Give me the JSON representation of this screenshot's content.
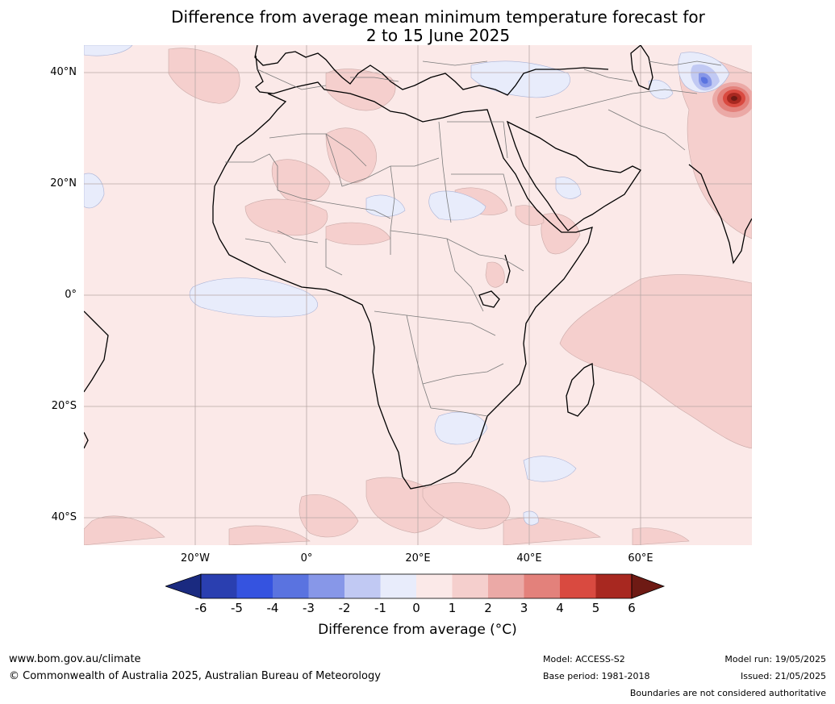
{
  "title_line1": "Difference from average mean minimum temperature forecast for",
  "title_line2": "2 to 15 June 2025",
  "lat_labels": [
    "40°N",
    "20°N",
    "0°",
    "20°S",
    "40°S"
  ],
  "lon_labels": [
    "20°W",
    "0°",
    "20°E",
    "40°E",
    "60°E"
  ],
  "colorbar": {
    "ticks": [
      "-6",
      "-5",
      "-4",
      "-3",
      "-2",
      "-1",
      "0",
      "1",
      "2",
      "3",
      "4",
      "5",
      "6"
    ],
    "label": "Difference from average (°C)",
    "colors": [
      "#1a2a80",
      "#2a3fb0",
      "#3553e0",
      "#5a73e0",
      "#8797e8",
      "#c1c9f3",
      "#e8ecfb",
      "#fbe9e8",
      "#f5cfcd",
      "#eba9a6",
      "#e3817b",
      "#d94a40",
      "#a82820",
      "#6e1a14"
    ]
  },
  "footer": {
    "website": "www.bom.gov.au/climate",
    "copyright": "© Commonwealth of Australia 2025, Australian Bureau of Meteorology",
    "model": "Model: ACCESS-S2",
    "base_period": "Base period: 1981-2018",
    "model_run": "Model run: 19/05/2025",
    "issued": "Issued: 21/05/2025",
    "disclaimer": "Boundaries are not considered authoritative"
  }
}
